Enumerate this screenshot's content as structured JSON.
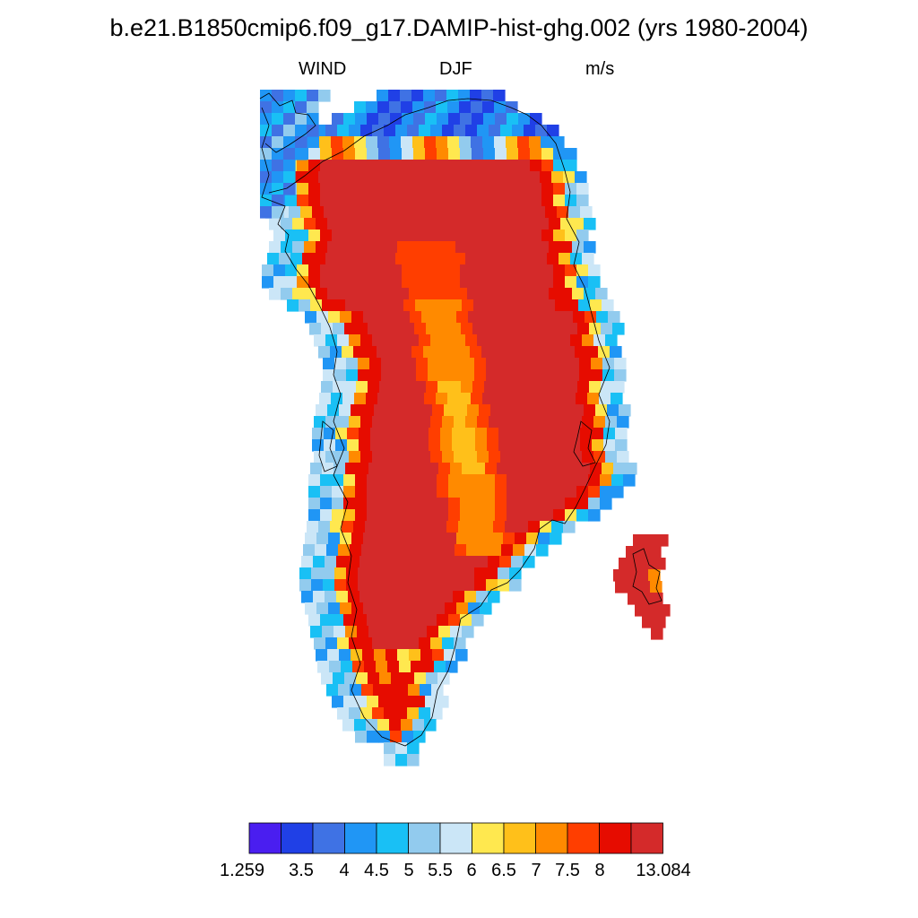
{
  "title": "b.e21.B1850cmip6.f09_g17.DAMIP-hist-ghg.002 (yrs 1980-2004)",
  "left_label": "WIND",
  "center_label": "DJF",
  "right_label": "m/s",
  "colorbar": {
    "colors": [
      "#4a1ef0",
      "#2040e6",
      "#3f72e4",
      "#2096f5",
      "#19c0f5",
      "#92cbee",
      "#cbe6f7",
      "#ffe84f",
      "#ffc01a",
      "#ff8a00",
      "#ff3e00",
      "#e60c00",
      "#d42a2a"
    ],
    "labels": [
      "1.259",
      "3.5",
      "4",
      "4.5",
      "5",
      "5.5",
      "6",
      "6.5",
      "7",
      "7.5",
      "8",
      "13.084"
    ]
  }
}
